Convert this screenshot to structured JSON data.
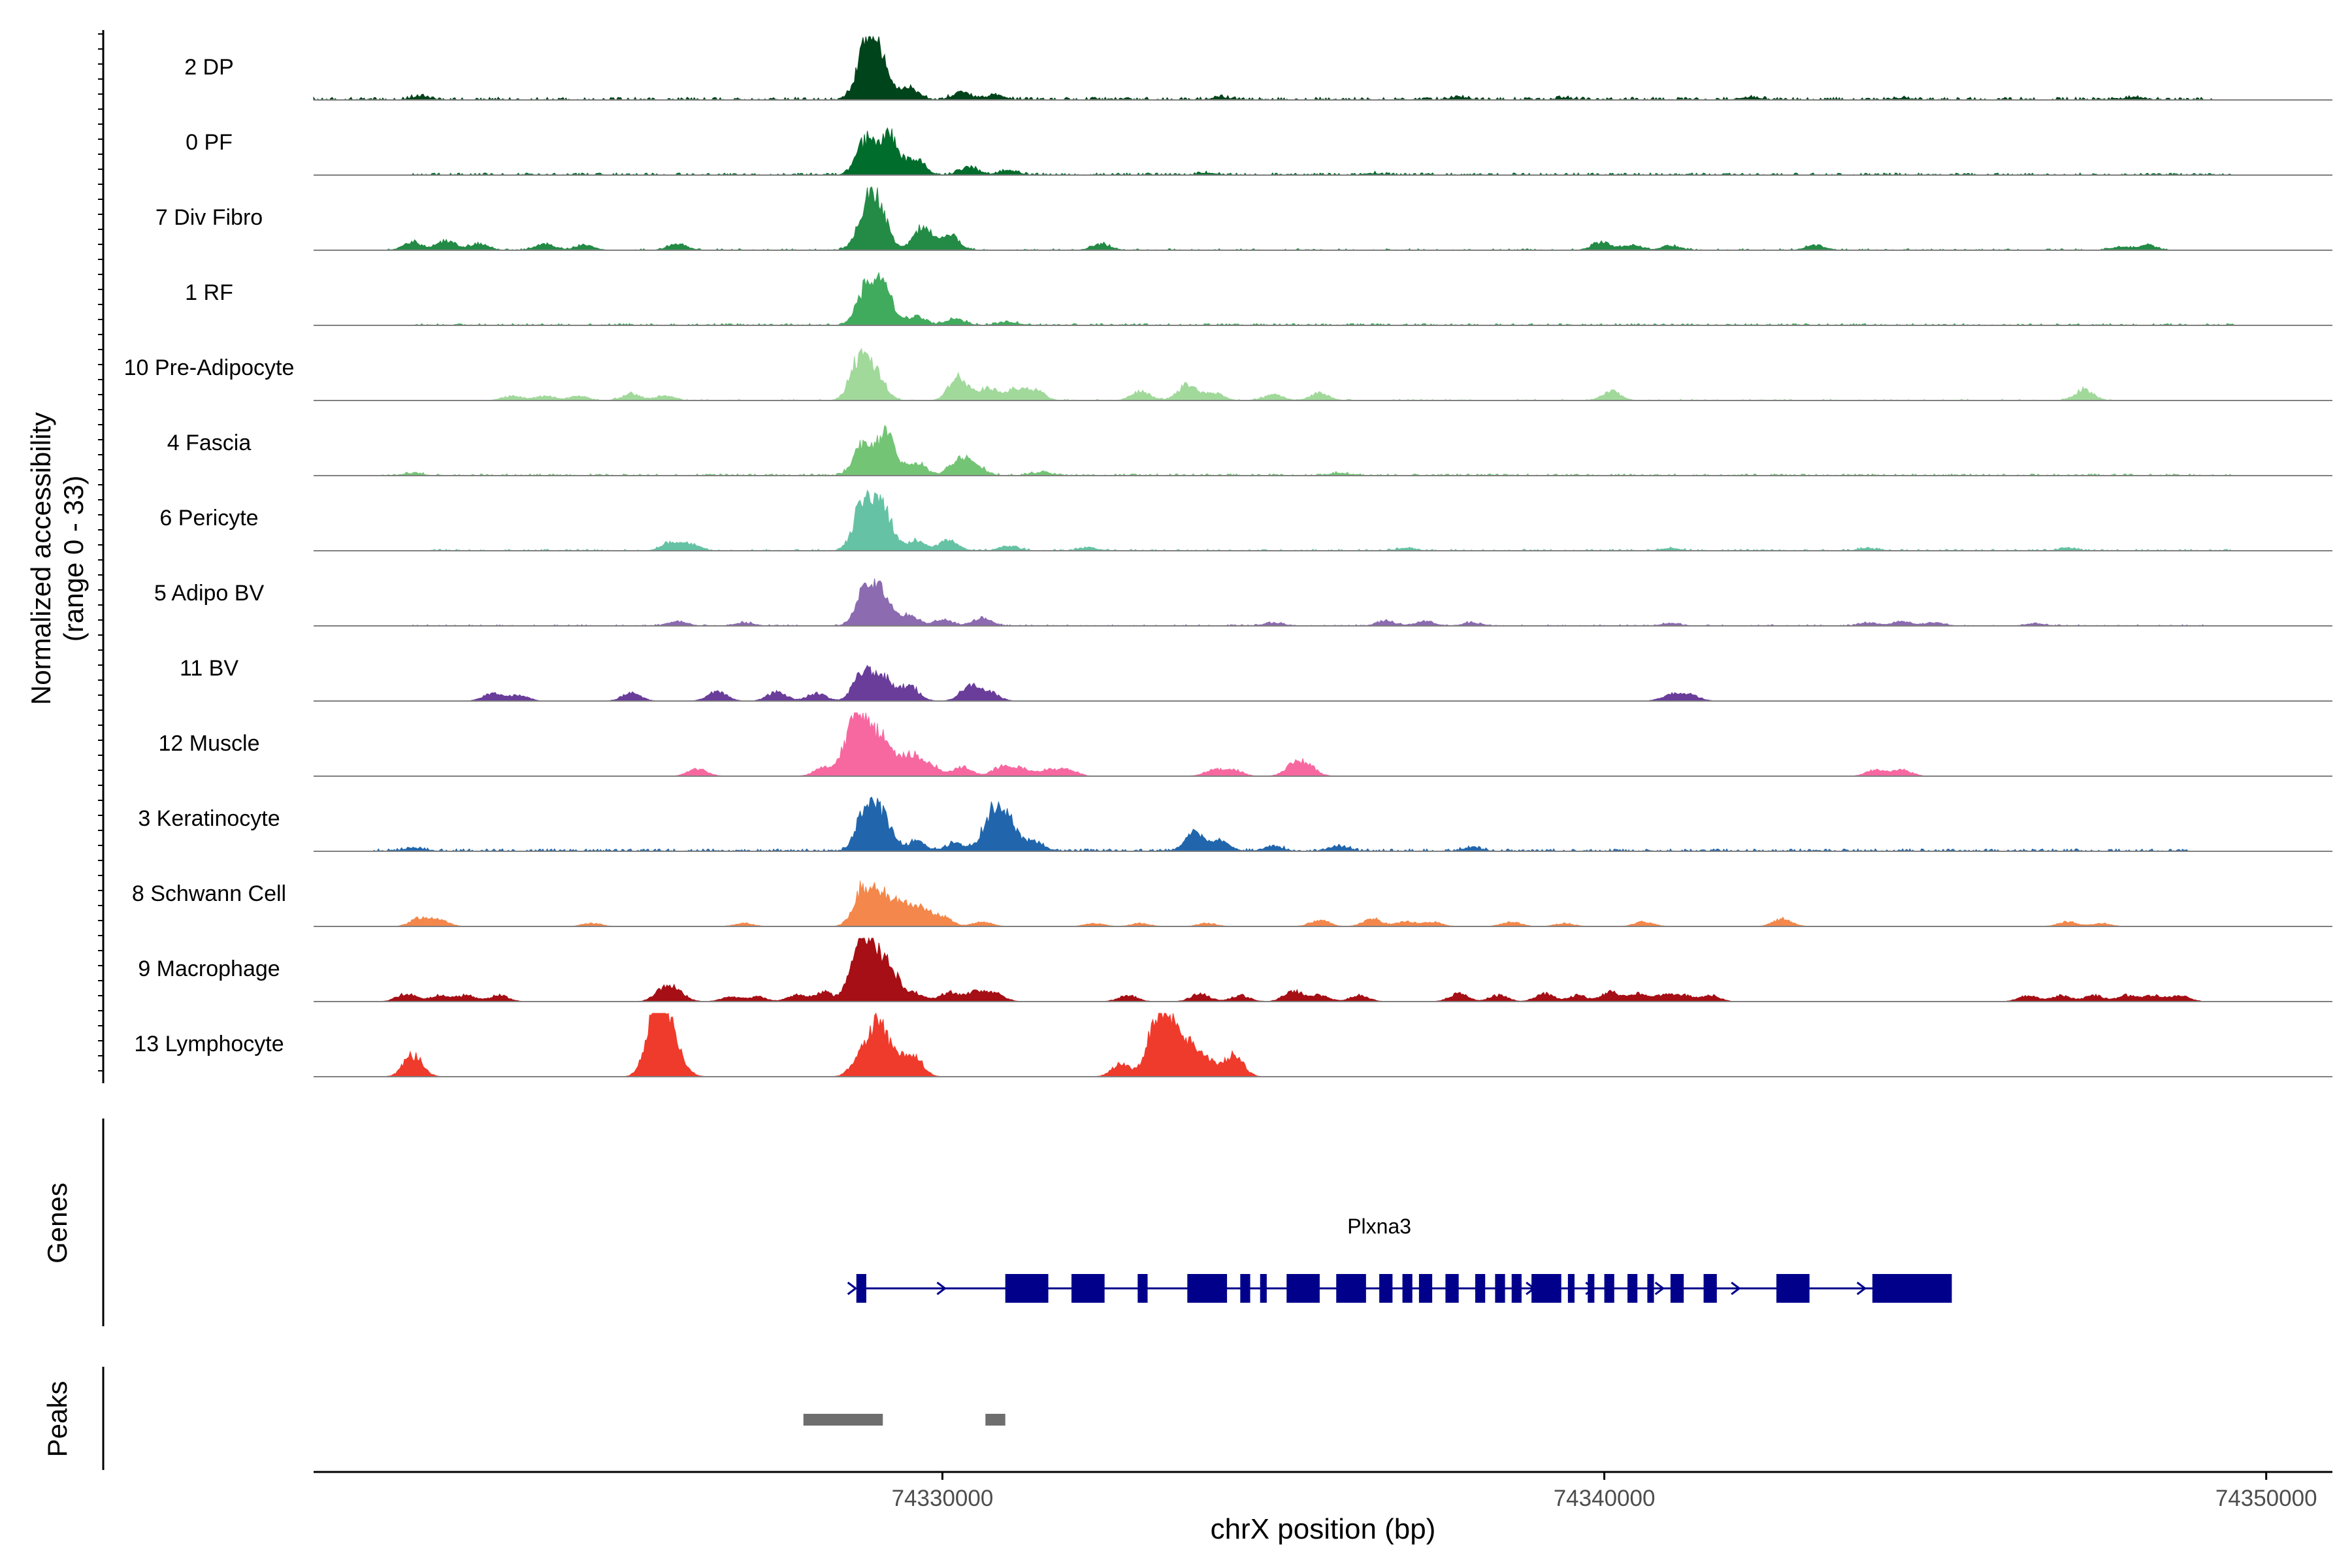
{
  "chart_data": {
    "type": "area",
    "title": "",
    "ylabel_line1": "Normalized accessibility",
    "ylabel_line2": "(range 0 - 33)",
    "genes_label": "Genes",
    "peaks_label": "Peaks",
    "xlabel": "chrX position (bp)",
    "xlim": [
      74320500,
      74351000
    ],
    "ylim": [
      0,
      33
    ],
    "xticks": [
      {
        "value": 74330000,
        "label": "74330000"
      },
      {
        "value": 74340000,
        "label": "74340000"
      },
      {
        "value": 74350000,
        "label": "74350000"
      }
    ],
    "tracks": [
      {
        "name": "2 DP",
        "color": "#00441b",
        "peaks": [
          [
            74328850,
            33
          ],
          [
            74329050,
            25
          ],
          [
            74329500,
            8
          ],
          [
            74330300,
            5
          ],
          [
            74330800,
            3
          ],
          [
            74322100,
            2
          ],
          [
            74334200,
            1.5
          ],
          [
            74337800,
            1.5
          ],
          [
            74339400,
            1
          ],
          [
            74342200,
            1.5
          ],
          [
            74344500,
            1
          ],
          [
            74348000,
            1.5
          ]
        ],
        "noise": 0.9,
        "density": 0.55,
        "span": [
          74320500,
          74349200
        ]
      },
      {
        "name": "0 PF",
        "color": "#006d2c",
        "peaks": [
          [
            74328850,
            22
          ],
          [
            74329200,
            25
          ],
          [
            74329600,
            9
          ],
          [
            74330400,
            5
          ],
          [
            74331000,
            3
          ],
          [
            74334000,
            1.2
          ],
          [
            74336500,
            1
          ]
        ],
        "noise": 0.7,
        "density": 0.5,
        "span": [
          74322000,
          74349500
        ]
      },
      {
        "name": "7 Div Fibro",
        "color": "#238b45",
        "peaks": [
          [
            74328850,
            25
          ],
          [
            74329050,
            22
          ],
          [
            74329700,
            14
          ],
          [
            74330100,
            10
          ],
          [
            74322000,
            5
          ],
          [
            74322500,
            6
          ],
          [
            74323000,
            4
          ],
          [
            74324000,
            4
          ],
          [
            74324600,
            3
          ],
          [
            74326000,
            4
          ],
          [
            74332400,
            4
          ],
          [
            74339950,
            5
          ],
          [
            74340400,
            3
          ],
          [
            74341000,
            3
          ],
          [
            74343200,
            3
          ],
          [
            74347800,
            2
          ],
          [
            74348200,
            3
          ]
        ],
        "noise": 0.5,
        "density": 0.3,
        "span": [
          74321400,
          74348500
        ]
      },
      {
        "name": "1 RF",
        "color": "#41ab5d",
        "peaks": [
          [
            74328850,
            22
          ],
          [
            74329100,
            25
          ],
          [
            74329600,
            6
          ],
          [
            74330200,
            4
          ],
          [
            74331000,
            2
          ]
        ],
        "noise": 0.6,
        "density": 0.5,
        "span": [
          74322000,
          74349500
        ]
      },
      {
        "name": "10 Pre-Adipocyte",
        "color": "#a1d99b",
        "peaks": [
          [
            74328750,
            27
          ],
          [
            74329000,
            16
          ],
          [
            74330250,
            15
          ],
          [
            74330700,
            8
          ],
          [
            74331100,
            7
          ],
          [
            74331400,
            6
          ],
          [
            74333000,
            6
          ],
          [
            74333700,
            10
          ],
          [
            74334100,
            5
          ],
          [
            74323500,
            3
          ],
          [
            74324000,
            3
          ],
          [
            74324500,
            3
          ],
          [
            74325300,
            4
          ],
          [
            74325800,
            3
          ],
          [
            74335000,
            4
          ],
          [
            74335700,
            5
          ],
          [
            74340100,
            6
          ],
          [
            74347250,
            7
          ]
        ],
        "noise": 0.4,
        "density": 0.2,
        "span": [
          74323500,
          74347700
        ]
      },
      {
        "name": "4 Fascia",
        "color": "#74c476",
        "peaks": [
          [
            74328800,
            20
          ],
          [
            74329150,
            26
          ],
          [
            74329600,
            8
          ],
          [
            74330250,
            10
          ],
          [
            74330500,
            6
          ],
          [
            74322000,
            1.5
          ],
          [
            74331500,
            2
          ],
          [
            74336000,
            1.5
          ]
        ],
        "noise": 0.6,
        "density": 0.5,
        "span": [
          74321500,
          74349500
        ]
      },
      {
        "name": "6 Pericyte",
        "color": "#66c2a4",
        "peaks": [
          [
            74328800,
            30
          ],
          [
            74329100,
            27
          ],
          [
            74329600,
            6
          ],
          [
            74330100,
            7
          ],
          [
            74325900,
            5
          ],
          [
            74326200,
            4
          ],
          [
            74331000,
            3
          ],
          [
            74332200,
            2
          ],
          [
            74337000,
            1.5
          ],
          [
            74341000,
            1.5
          ],
          [
            74344000,
            1.5
          ],
          [
            74347000,
            1.5
          ]
        ],
        "noise": 0.5,
        "density": 0.4,
        "span": [
          74322200,
          74349500
        ]
      },
      {
        "name": "5 Adipo BV",
        "color": "#8c6bb1",
        "peaks": [
          [
            74328850,
            24
          ],
          [
            74329100,
            18
          ],
          [
            74329500,
            6
          ],
          [
            74330000,
            4
          ],
          [
            74330600,
            5
          ],
          [
            74326000,
            3
          ],
          [
            74327000,
            2
          ],
          [
            74335000,
            2
          ],
          [
            74336700,
            3
          ],
          [
            74337300,
            3
          ],
          [
            74338000,
            2
          ],
          [
            74341000,
            1.5
          ],
          [
            74344000,
            2
          ],
          [
            74344500,
            3
          ],
          [
            74345000,
            2
          ],
          [
            74346500,
            1.5
          ]
        ],
        "noise": 0.4,
        "density": 0.3,
        "span": [
          74322000,
          74349200
        ]
      },
      {
        "name": "11 BV",
        "color": "#6a3d9a",
        "peaks": [
          [
            74328800,
            19
          ],
          [
            74329100,
            15
          ],
          [
            74329500,
            10
          ],
          [
            74327500,
            6
          ],
          [
            74328100,
            5
          ],
          [
            74330400,
            9
          ],
          [
            74330700,
            6
          ],
          [
            74323200,
            5
          ],
          [
            74323600,
            4
          ],
          [
            74325300,
            5
          ],
          [
            74326600,
            6
          ],
          [
            74341000,
            4
          ],
          [
            74341300,
            4
          ]
        ],
        "noise": 0.0,
        "density": 0.0,
        "span": [
          74323000,
          74341500
        ]
      },
      {
        "name": "12 Muscle",
        "color": "#f768a1",
        "peaks": [
          [
            74328800,
            34
          ],
          [
            74328600,
            20
          ],
          [
            74329100,
            22
          ],
          [
            74329500,
            14
          ],
          [
            74329800,
            8
          ],
          [
            74328200,
            5
          ],
          [
            74330300,
            6
          ],
          [
            74330900,
            6
          ],
          [
            74331200,
            5
          ],
          [
            74331600,
            4
          ],
          [
            74331900,
            4
          ],
          [
            74326300,
            5
          ],
          [
            74334100,
            4
          ],
          [
            74334400,
            4
          ],
          [
            74335300,
            6
          ],
          [
            74335500,
            7
          ],
          [
            74344100,
            4
          ],
          [
            74344500,
            4
          ]
        ],
        "noise": 0.0,
        "density": 0.0,
        "span": [
          74326000,
          74344700
        ]
      },
      {
        "name": "3 Keratinocyte",
        "color": "#2166ac",
        "peaks": [
          [
            74328850,
            26
          ],
          [
            74329100,
            20
          ],
          [
            74329600,
            6
          ],
          [
            74330200,
            5
          ],
          [
            74330750,
            24
          ],
          [
            74331000,
            18
          ],
          [
            74331400,
            6
          ],
          [
            74333800,
            12
          ],
          [
            74334200,
            6
          ],
          [
            74335000,
            3
          ],
          [
            74336000,
            3
          ],
          [
            74322000,
            2
          ],
          [
            74338000,
            2
          ]
        ],
        "noise": 0.8,
        "density": 0.6,
        "span": [
          74321400,
          74348800
        ]
      },
      {
        "name": "8 Schwann Cell",
        "color": "#f4874b",
        "peaks": [
          [
            74328800,
            25
          ],
          [
            74329100,
            18
          ],
          [
            74329400,
            14
          ],
          [
            74329700,
            10
          ],
          [
            74330000,
            6
          ],
          [
            74330600,
            3
          ],
          [
            74322100,
            5
          ],
          [
            74322400,
            4
          ],
          [
            74324700,
            2
          ],
          [
            74327000,
            2
          ],
          [
            74332300,
            2
          ],
          [
            74333000,
            2
          ],
          [
            74334000,
            2
          ],
          [
            74335700,
            4
          ],
          [
            74336500,
            5
          ],
          [
            74337000,
            3
          ],
          [
            74337400,
            3
          ],
          [
            74338600,
            3
          ],
          [
            74339400,
            2
          ],
          [
            74340600,
            3
          ],
          [
            74342700,
            5
          ],
          [
            74347000,
            3
          ],
          [
            74347500,
            2
          ]
        ],
        "noise": 0.0,
        "density": 0.0,
        "span": [
          74321500,
          74347800
        ]
      },
      {
        "name": "9 Macrophage",
        "color": "#a50f15",
        "peaks": [
          [
            74328900,
            34
          ],
          [
            74328700,
            20
          ],
          [
            74329200,
            22
          ],
          [
            74328200,
            6
          ],
          [
            74329600,
            5
          ],
          [
            74330100,
            6
          ],
          [
            74330500,
            6
          ],
          [
            74330800,
            5
          ],
          [
            74321900,
            5
          ],
          [
            74322400,
            4
          ],
          [
            74322800,
            4
          ],
          [
            74323300,
            4
          ],
          [
            74325800,
            8
          ],
          [
            74326000,
            5
          ],
          [
            74326800,
            3
          ],
          [
            74327200,
            3
          ],
          [
            74327800,
            4
          ],
          [
            74332800,
            4
          ],
          [
            74333900,
            5
          ],
          [
            74334500,
            4
          ],
          [
            74335300,
            7
          ],
          [
            74335700,
            4
          ],
          [
            74336300,
            4
          ],
          [
            74337800,
            5
          ],
          [
            74338400,
            4
          ],
          [
            74339100,
            5
          ],
          [
            74339600,
            4
          ],
          [
            74340100,
            6
          ],
          [
            74340500,
            5
          ],
          [
            74340900,
            4
          ],
          [
            74341200,
            4
          ],
          [
            74341600,
            4
          ],
          [
            74346400,
            4
          ],
          [
            74346900,
            4
          ],
          [
            74347400,
            4
          ],
          [
            74347900,
            4
          ],
          [
            74348300,
            4
          ],
          [
            74348700,
            4
          ]
        ],
        "noise": 0.0,
        "density": 0.0,
        "span": [
          74321500,
          74348900
        ]
      },
      {
        "name": "13 Lymphocyte",
        "color": "#ef3b2c",
        "peaks": [
          [
            74325650,
            33
          ],
          [
            74325800,
            28
          ],
          [
            74326000,
            10
          ],
          [
            74322000,
            14
          ],
          [
            74328750,
            10
          ],
          [
            74329000,
            32
          ],
          [
            74329250,
            12
          ],
          [
            74329550,
            14
          ],
          [
            74330000,
            0
          ],
          [
            74332700,
            8
          ],
          [
            74333200,
            25
          ],
          [
            74333400,
            33
          ],
          [
            74333700,
            20
          ],
          [
            74334000,
            10
          ],
          [
            74334400,
            14
          ]
        ],
        "noise": 0.0,
        "density": 0.0,
        "span": [
          74321800,
          74334500
        ]
      }
    ],
    "genes": [
      {
        "name": "Plxna3",
        "start": 74328700,
        "end": 74344500,
        "strand": "+",
        "exons": [
          [
            74328700,
            74328850
          ],
          [
            74330950,
            74331600
          ],
          [
            74331950,
            74332450
          ],
          [
            74332950,
            74333100
          ],
          [
            74333700,
            74334300
          ],
          [
            74334500,
            74334650
          ],
          [
            74334800,
            74334900
          ],
          [
            74335200,
            74335700
          ],
          [
            74335950,
            74336400
          ],
          [
            74336600,
            74336800
          ],
          [
            74336950,
            74337100
          ],
          [
            74337200,
            74337400
          ],
          [
            74337600,
            74337800
          ],
          [
            74338050,
            74338200
          ],
          [
            74338350,
            74338500
          ],
          [
            74338600,
            74338750
          ],
          [
            74338900,
            74339350
          ],
          [
            74339450,
            74339550
          ],
          [
            74339750,
            74339850
          ],
          [
            74340000,
            74340150
          ],
          [
            74340350,
            74340500
          ],
          [
            74340650,
            74340750
          ],
          [
            74341000,
            74341200
          ],
          [
            74341500,
            74341700
          ],
          [
            74342600,
            74343100
          ],
          [
            74344050,
            74345250
          ]
        ]
      }
    ],
    "peak_regions": [
      [
        74327900,
        74329100
      ],
      [
        74330650,
        74330950
      ]
    ]
  }
}
